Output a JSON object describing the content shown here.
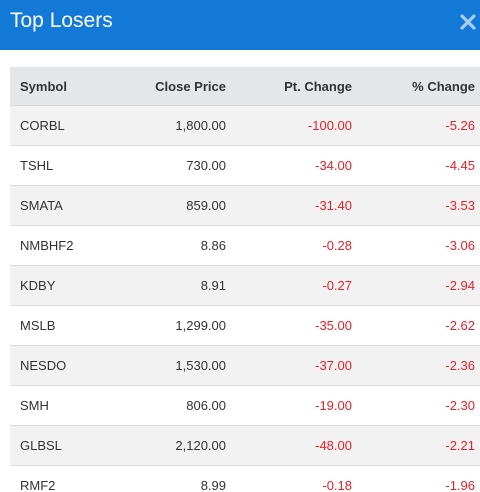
{
  "modal": {
    "title": "Top Losers",
    "close_icon": "close-x-icon"
  },
  "table": {
    "headers": {
      "symbol": "Symbol",
      "close_price": "Close Price",
      "pt_change": "Pt. Change",
      "pct_change": "% Change"
    },
    "rows": [
      {
        "symbol": "CORBL",
        "close_price": "1,800.00",
        "pt_change": "-100.00",
        "pct_change": "-5.26"
      },
      {
        "symbol": "TSHL",
        "close_price": "730.00",
        "pt_change": "-34.00",
        "pct_change": "-4.45"
      },
      {
        "symbol": "SMATA",
        "close_price": "859.00",
        "pt_change": "-31.40",
        "pct_change": "-3.53"
      },
      {
        "symbol": "NMBHF2",
        "close_price": "8.86",
        "pt_change": "-0.28",
        "pct_change": "-3.06"
      },
      {
        "symbol": "KDBY",
        "close_price": "8.91",
        "pt_change": "-0.27",
        "pct_change": "-2.94"
      },
      {
        "symbol": "MSLB",
        "close_price": "1,299.00",
        "pt_change": "-35.00",
        "pct_change": "-2.62"
      },
      {
        "symbol": "NESDO",
        "close_price": "1,530.00",
        "pt_change": "-37.00",
        "pct_change": "-2.36"
      },
      {
        "symbol": "SMH",
        "close_price": "806.00",
        "pt_change": "-19.00",
        "pct_change": "-2.30"
      },
      {
        "symbol": "GLBSL",
        "close_price": "2,120.00",
        "pt_change": "-48.00",
        "pct_change": "-2.21"
      },
      {
        "symbol": "RMF2",
        "close_price": "8.99",
        "pt_change": "-0.18",
        "pct_change": "-1.96"
      }
    ]
  },
  "colors": {
    "header_bg": "#1279d7",
    "negative": "#e8202b",
    "table_head_bg": "#e4e6e9",
    "row_stripe": "#f2f2f2"
  }
}
